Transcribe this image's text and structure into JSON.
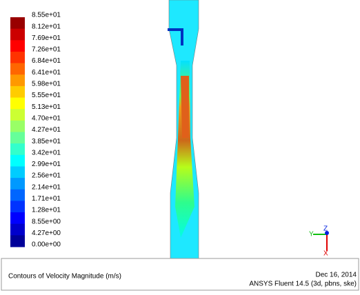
{
  "legend": {
    "levels": [
      "8.55e+01",
      "8.12e+01",
      "7.69e+01",
      "7.26e+01",
      "6.84e+01",
      "6.41e+01",
      "5.98e+01",
      "5.55e+01",
      "5.13e+01",
      "4.70e+01",
      "4.27e+01",
      "3.85e+01",
      "3.42e+01",
      "2.99e+01",
      "2.56e+01",
      "2.14e+01",
      "1.71e+01",
      "1.28e+01",
      "8.55e+00",
      "4.27e+00",
      "0.00e+00"
    ]
  },
  "axes": {
    "y": "Y",
    "z": "Z",
    "x": "X"
  },
  "footer": {
    "title": "Contours of Velocity Magnitude (m/s)",
    "date": "Dec 16, 2014",
    "solver": "ANSYS Fluent 14.5 (3d, pbns, ske)"
  }
}
